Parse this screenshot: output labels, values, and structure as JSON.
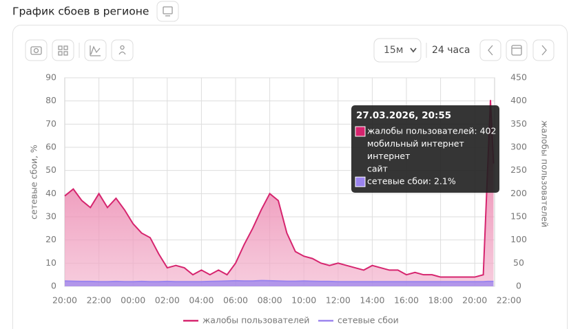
{
  "header": {
    "title": "График сбоев в регионе"
  },
  "toolbar": {
    "interval": "15м",
    "range": "24 часа"
  },
  "chart_data": {
    "type": "area",
    "y_label": "сетевые сбои, %",
    "y2_label": "жалобы пользователей",
    "x": [
      0,
      0.5,
      1,
      1.5,
      2,
      2.5,
      3,
      3.5,
      4,
      4.5,
      5,
      5.5,
      6,
      6.5,
      7,
      7.5,
      8,
      8.5,
      9,
      9.5,
      10,
      10.5,
      11,
      11.5,
      12,
      12.5,
      13,
      13.5,
      14,
      14.5,
      15,
      15.5,
      16,
      16.5,
      17,
      17.5,
      18,
      18.5,
      19,
      19.5,
      20,
      20.5,
      21,
      21.5,
      22,
      22.5,
      23,
      23.5,
      24,
      24.5,
      24.75,
      24.92,
      25.1
    ],
    "xlim": [
      0,
      26
    ],
    "xticks": [
      {
        "value": 0,
        "label": "20:00"
      },
      {
        "value": 2,
        "label": "22:00"
      },
      {
        "value": 4,
        "label": "00:00"
      },
      {
        "value": 6,
        "label": "02:00"
      },
      {
        "value": 8,
        "label": "04:00"
      },
      {
        "value": 10,
        "label": "06:00"
      },
      {
        "value": 12,
        "label": "08:00"
      },
      {
        "value": 14,
        "label": "10:00"
      },
      {
        "value": 16,
        "label": "12:00"
      },
      {
        "value": 18,
        "label": "14:00"
      },
      {
        "value": 20,
        "label": "16:00"
      },
      {
        "value": 22,
        "label": "18:00"
      },
      {
        "value": 24,
        "label": "20:00"
      },
      {
        "value": 26,
        "label": "22:00"
      }
    ],
    "ylim": [
      0,
      90
    ],
    "yticks": [
      0,
      10,
      20,
      30,
      40,
      50,
      60,
      70,
      80,
      90
    ],
    "y2lim": [
      0,
      450
    ],
    "y2ticks": [
      0,
      50,
      100,
      150,
      200,
      250,
      300,
      350,
      400,
      450
    ],
    "grid": true,
    "legend": "bottom",
    "series": [
      {
        "name": "жалобы пользователей",
        "color": "#d6246e",
        "axis": "y2",
        "values": [
          195,
          210,
          185,
          170,
          200,
          170,
          190,
          165,
          135,
          115,
          105,
          70,
          40,
          45,
          40,
          25,
          35,
          25,
          35,
          25,
          50,
          90,
          125,
          165,
          200,
          185,
          115,
          75,
          65,
          60,
          50,
          45,
          50,
          45,
          40,
          35,
          45,
          40,
          35,
          35,
          25,
          30,
          25,
          25,
          20,
          20,
          20,
          20,
          20,
          25,
          250,
          402,
          265
        ]
      },
      {
        "name": "сетевые сбои",
        "color": "#9b84ee",
        "axis": "y",
        "values": [
          2.3,
          2.2,
          2.1,
          2.1,
          2.0,
          2.0,
          2.1,
          2.0,
          2.0,
          2.1,
          2.0,
          2.0,
          2.1,
          2.0,
          2.0,
          2.0,
          2.0,
          2.1,
          2.2,
          2.3,
          2.4,
          2.3,
          2.3,
          2.5,
          2.4,
          2.3,
          2.2,
          2.2,
          2.3,
          2.2,
          2.1,
          2.1,
          2.0,
          2.0,
          2.0,
          2.0,
          2.0,
          2.0,
          2.0,
          2.0,
          2.0,
          2.0,
          2.0,
          2.0,
          2.0,
          2.0,
          2.0,
          2.0,
          2.0,
          2.0,
          2.1,
          2.1,
          2.1
        ]
      }
    ],
    "tooltip": {
      "title": "27.03.2026, 20:55",
      "lines": [
        "жалобы пользователей: 402",
        "мобильный интернет",
        "интернет",
        "сайт",
        "сетевые сбои: 2.1%"
      ]
    }
  }
}
